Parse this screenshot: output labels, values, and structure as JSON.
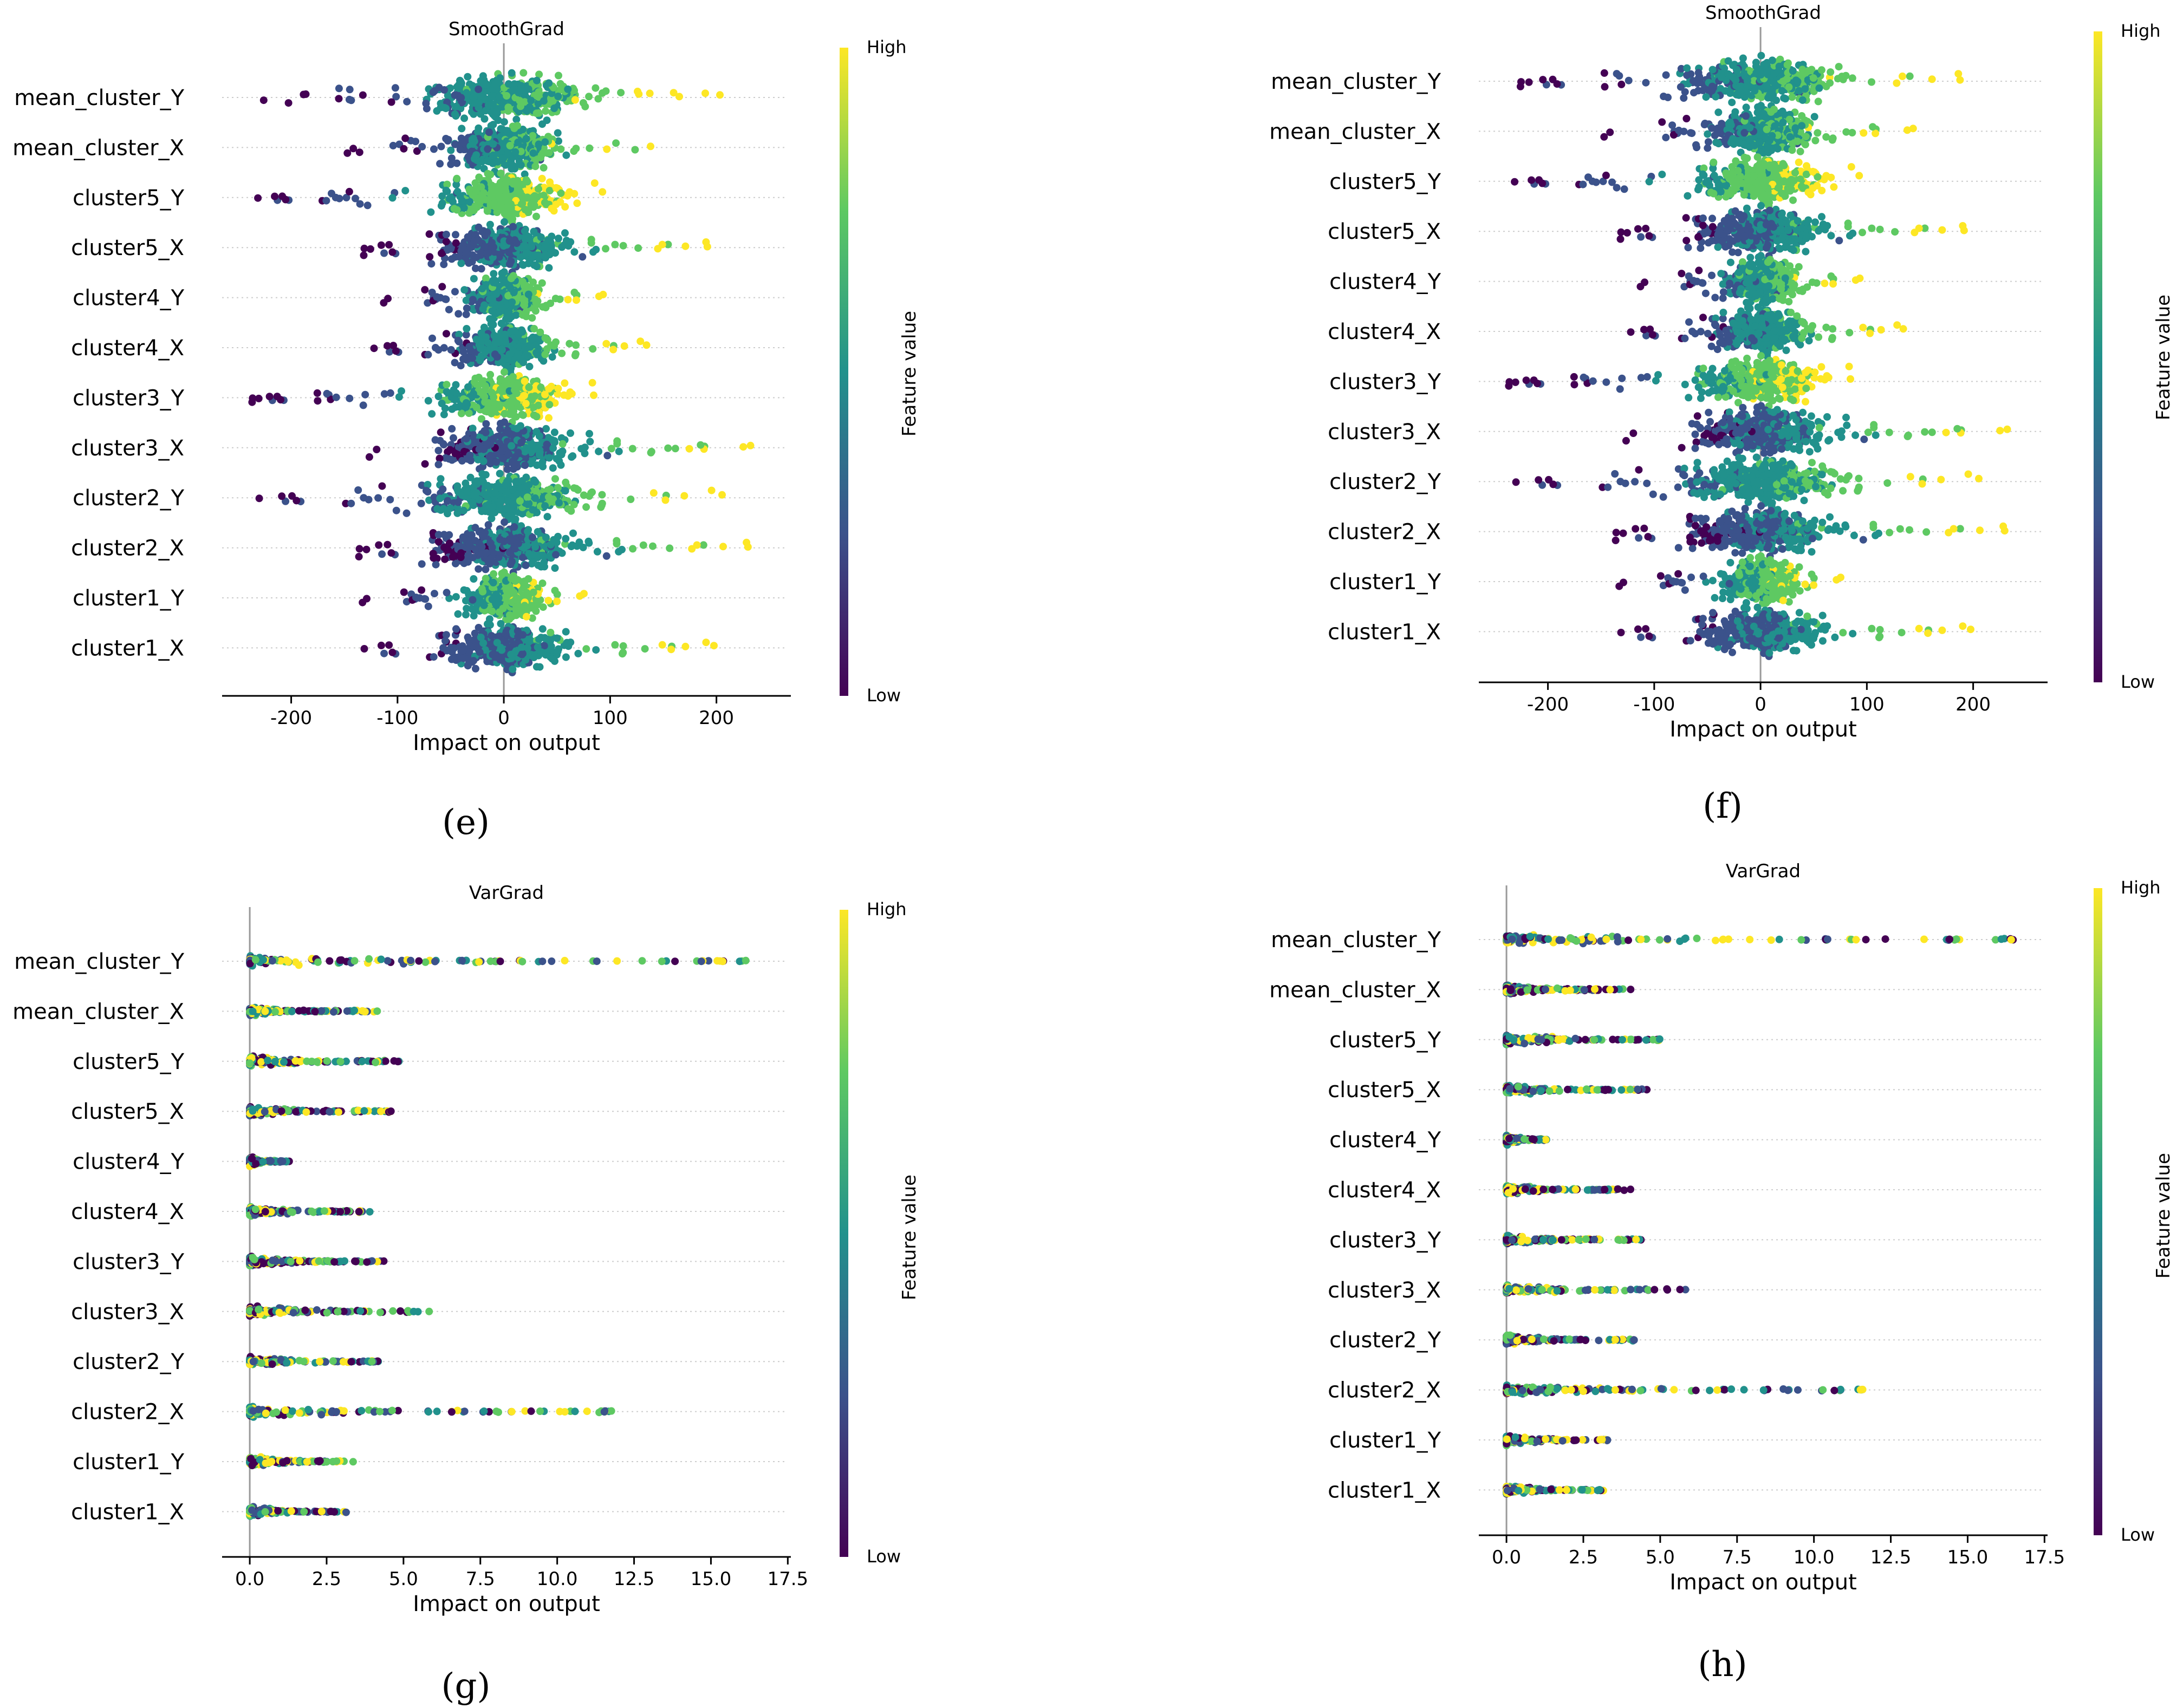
{
  "figure": {
    "captions": [
      "(e)",
      "(f)",
      "(g)",
      "(h)"
    ]
  },
  "colorbar": {
    "high_label": "High",
    "low_label": "Low",
    "title": "Feature value",
    "colors": [
      "#440154",
      "#3b528b",
      "#21918c",
      "#5ec962",
      "#fde725"
    ]
  },
  "chart_data": [
    {
      "type": "scatter",
      "id": "e",
      "title": "SmoothGrad",
      "xlabel": "Impact on output",
      "xlim": [
        -265,
        270
      ],
      "xticks": [
        "-200",
        "-100",
        "0",
        "100",
        "200"
      ],
      "xtick_values": [
        -200,
        -100,
        0,
        100,
        200
      ],
      "features": [
        "mean_cluster_Y",
        "mean_cluster_X",
        "cluster5_Y",
        "cluster5_X",
        "cluster4_Y",
        "cluster4_X",
        "cluster3_Y",
        "cluster3_X",
        "cluster2_Y",
        "cluster2_X",
        "cluster1_Y",
        "cluster1_X"
      ],
      "ranges": [
        [
          -230,
          205
        ],
        [
          -150,
          150
        ],
        [
          -235,
          100
        ],
        [
          -135,
          205
        ],
        [
          -115,
          98
        ],
        [
          -125,
          140
        ],
        [
          -240,
          98
        ],
        [
          -130,
          240
        ],
        [
          -235,
          215
        ],
        [
          -140,
          245
        ],
        [
          -135,
          80
        ],
        [
          -135,
          205
        ]
      ]
    },
    {
      "type": "scatter",
      "id": "f",
      "title": "SmoothGrad",
      "xlabel": "Impact on output",
      "xlim": [
        -265,
        270
      ],
      "xticks": [
        "-200",
        "-100",
        "0",
        "100",
        "200"
      ],
      "xtick_values": [
        -200,
        -100,
        0,
        100,
        200
      ],
      "features": [
        "mean_cluster_Y",
        "mean_cluster_X",
        "cluster5_Y",
        "cluster5_X",
        "cluster4_Y",
        "cluster4_X",
        "cluster3_Y",
        "cluster3_X",
        "cluster2_Y",
        "cluster2_X",
        "cluster1_Y",
        "cluster1_X"
      ],
      "ranges": [
        [
          -230,
          205
        ],
        [
          -150,
          150
        ],
        [
          -235,
          100
        ],
        [
          -135,
          205
        ],
        [
          -115,
          98
        ],
        [
          -125,
          140
        ],
        [
          -240,
          98
        ],
        [
          -130,
          240
        ],
        [
          -235,
          215
        ],
        [
          -140,
          245
        ],
        [
          -135,
          80
        ],
        [
          -135,
          205
        ]
      ]
    },
    {
      "type": "scatter",
      "id": "g",
      "title": "VarGrad",
      "xlabel": "Impact on output",
      "xlim": [
        -0.9,
        17.6
      ],
      "xticks": [
        "0.0",
        "2.5",
        "5.0",
        "7.5",
        "10.0",
        "12.5",
        "15.0",
        "17.5"
      ],
      "xtick_values": [
        0,
        2.5,
        5,
        7.5,
        10,
        12.5,
        15,
        17.5
      ],
      "features": [
        "mean_cluster_Y",
        "mean_cluster_X",
        "cluster5_Y",
        "cluster5_X",
        "cluster4_Y",
        "cluster4_X",
        "cluster3_Y",
        "cluster3_X",
        "cluster2_Y",
        "cluster2_X",
        "cluster1_Y",
        "cluster1_X"
      ],
      "ranges": [
        [
          0,
          16.8
        ],
        [
          0,
          4.2
        ],
        [
          0,
          5.0
        ],
        [
          0,
          4.6
        ],
        [
          0,
          1.3
        ],
        [
          0,
          4.1
        ],
        [
          0,
          4.4
        ],
        [
          0,
          5.9
        ],
        [
          0,
          4.2
        ],
        [
          0,
          11.8
        ],
        [
          0,
          3.4
        ],
        [
          0,
          3.2
        ]
      ]
    },
    {
      "type": "scatter",
      "id": "h",
      "title": "VarGrad",
      "xlabel": "Impact on output",
      "xlim": [
        -0.9,
        17.6
      ],
      "xticks": [
        "0.0",
        "2.5",
        "5.0",
        "7.5",
        "10.0",
        "12.5",
        "15.0",
        "17.5"
      ],
      "xtick_values": [
        0,
        2.5,
        5,
        7.5,
        10,
        12.5,
        15,
        17.5
      ],
      "features": [
        "mean_cluster_Y",
        "mean_cluster_X",
        "cluster5_Y",
        "cluster5_X",
        "cluster4_Y",
        "cluster4_X",
        "cluster3_Y",
        "cluster3_X",
        "cluster2_Y",
        "cluster2_X",
        "cluster1_Y",
        "cluster1_X"
      ],
      "ranges": [
        [
          0,
          16.8
        ],
        [
          0,
          4.2
        ],
        [
          0,
          5.0
        ],
        [
          0,
          4.6
        ],
        [
          0,
          1.3
        ],
        [
          0,
          4.1
        ],
        [
          0,
          4.4
        ],
        [
          0,
          5.9
        ],
        [
          0,
          4.2
        ],
        [
          0,
          11.8
        ],
        [
          0,
          3.4
        ],
        [
          0,
          3.2
        ]
      ]
    }
  ]
}
